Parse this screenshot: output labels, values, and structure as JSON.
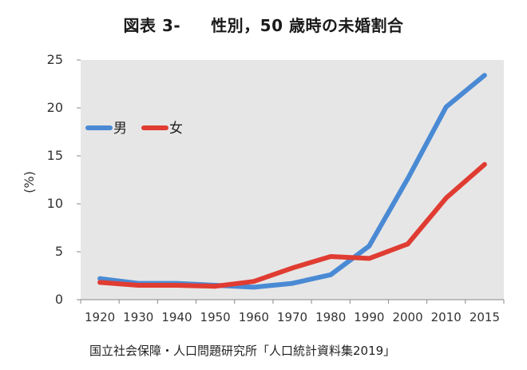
{
  "title_prefix": "図表 3-",
  "title_main": "性別，50 歳時の未婚割合",
  "source": "国立社会保障・人口問題研究所「人口統計資料集2019」",
  "chart_data": {
    "type": "line",
    "title": "図表 3-　性別，50 歳時の未婚割合",
    "ylabel": "(%)",
    "xlabel": "",
    "ylim": [
      0,
      25
    ],
    "yticks": [
      0,
      5,
      10,
      15,
      20,
      25
    ],
    "categories": [
      "1920",
      "1930",
      "1940",
      "1950",
      "1960",
      "1970",
      "1980",
      "1990",
      "2000",
      "2010",
      "2015"
    ],
    "grid": false,
    "legend_position": "upper-left",
    "series": [
      {
        "name": "男",
        "color": "#4a8ad4",
        "values": [
          2.2,
          1.7,
          1.7,
          1.5,
          1.3,
          1.7,
          2.6,
          5.6,
          12.6,
          20.1,
          23.4
        ]
      },
      {
        "name": "女",
        "color": "#e03c32",
        "values": [
          1.8,
          1.5,
          1.5,
          1.4,
          1.9,
          3.3,
          4.5,
          4.3,
          5.8,
          10.6,
          14.1
        ]
      }
    ]
  }
}
